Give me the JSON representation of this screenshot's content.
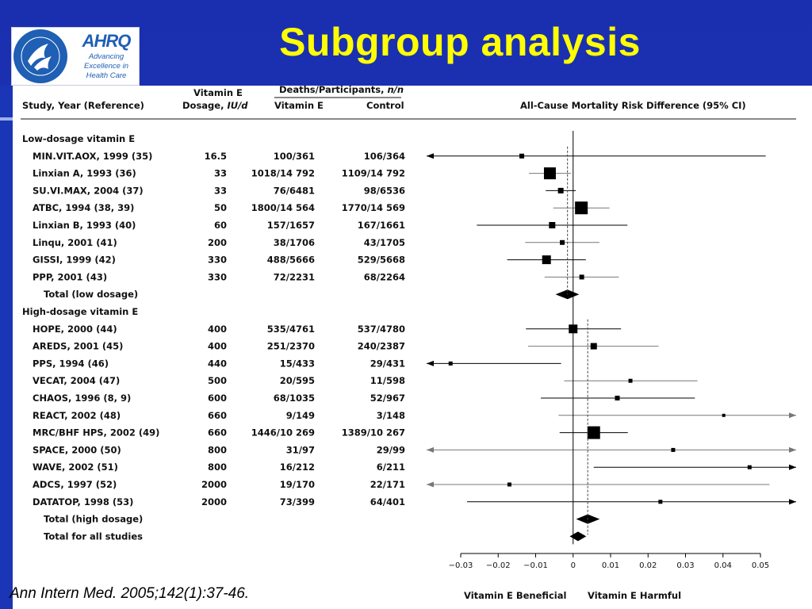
{
  "title": "Subgroup analysis",
  "citation": "Ann Intern Med. 2005;142(1):37-46.",
  "logo": {
    "brand": "AHRQ",
    "tagline": [
      "Advancing",
      "Excellence in",
      "Health Care"
    ],
    "seal_icon": "hhs-seal-icon"
  },
  "colors": {
    "slide_bg": "#1a35b5",
    "title": "#ffff00",
    "panel": "#ffffff",
    "marker": "#000000"
  },
  "table_headers": {
    "study": "Study, Year (Reference)",
    "dose_line1": "Vitamin E",
    "dose_line2": "Dosage, ",
    "dose_unit": "IU/d",
    "deaths_prefix": "Deaths/Participants, ",
    "deaths_unit": "n/n",
    "vitamin_e": "Vitamin E",
    "control": "Control",
    "plot": "All-Cause Mortality Risk Difference (95% CI)"
  },
  "x_axis_footer": {
    "left": "Vitamin E Beneficial",
    "right": "Vitamin E Harmful"
  },
  "chart_data": {
    "type": "forest",
    "title": "All-Cause Mortality Risk Difference (95% CI)",
    "xlim": [
      -0.03,
      0.05
    ],
    "xticks": [
      "−0.03",
      "−0.02",
      "−0.01",
      "0",
      "0.01",
      "0.02",
      "0.03",
      "0.04",
      "0.05"
    ],
    "xtick_values": [
      -0.03,
      -0.02,
      -0.01,
      0,
      0.01,
      0.02,
      0.03,
      0.04,
      0.05
    ],
    "reference_lines": {
      "null": 0,
      "low_dosage_pooled": -0.0015,
      "high_dosage_pooled": 0.0039
    },
    "rows": [
      {
        "kind": "group",
        "label": "Low-dosage vitamin E"
      },
      {
        "kind": "study",
        "label": "MIN.VIT.AOX, 1999 (35)",
        "dose": "16.5",
        "ve": "100/361",
        "ctrl": "106/364",
        "est": -0.0137,
        "lo": -0.04,
        "hi": 0.0514,
        "arrow_lo": true,
        "arrow_hi": false,
        "size": 6,
        "grey": false
      },
      {
        "kind": "study",
        "label": "Linxian A, 1993 (36)",
        "dose": "33",
        "ve": "1018/14 792",
        "ctrl": "1109/14 792",
        "est": -0.0062,
        "lo": -0.0118,
        "hi": -0.0006,
        "size": 15,
        "grey": true
      },
      {
        "kind": "study",
        "label": "SU.VI.MAX, 2004 (37)",
        "dose": "33",
        "ve": "76/6481",
        "ctrl": "98/6536",
        "est": -0.0033,
        "lo": -0.0073,
        "hi": 0.0007,
        "size": 7,
        "grey": false
      },
      {
        "kind": "study",
        "label": "ATBC, 1994 (38, 39)",
        "dose": "50",
        "ve": "1800/14 564",
        "ctrl": "1770/14 569",
        "est": 0.0022,
        "lo": -0.0053,
        "hi": 0.0097,
        "size": 16,
        "grey": true
      },
      {
        "kind": "study",
        "label": "Linxian B, 1993 (40)",
        "dose": "60",
        "ve": "157/1657",
        "ctrl": "167/1661",
        "est": -0.0056,
        "lo": -0.0257,
        "hi": 0.0145,
        "size": 8,
        "grey": false
      },
      {
        "kind": "study",
        "label": "Linqu, 2001 (41)",
        "dose": "200",
        "ve": "38/1706",
        "ctrl": "43/1705",
        "est": -0.0029,
        "lo": -0.0128,
        "hi": 0.007,
        "size": 6,
        "grey": true
      },
      {
        "kind": "study",
        "label": "GISSI, 1999 (42)",
        "dose": "330",
        "ve": "488/5666",
        "ctrl": "529/5668",
        "est": -0.0071,
        "lo": -0.0176,
        "hi": 0.0034,
        "size": 11,
        "grey": false
      },
      {
        "kind": "study",
        "label": "PPP, 2001 (43)",
        "dose": "330",
        "ve": "72/2231",
        "ctrl": "68/2264",
        "est": 0.0023,
        "lo": -0.0076,
        "hi": 0.0122,
        "size": 6,
        "grey": true
      },
      {
        "kind": "total",
        "label": "Total (low dosage)",
        "est": -0.0015,
        "lo": -0.0047,
        "hi": 0.0016
      },
      {
        "kind": "group",
        "label": "High-dosage vitamin E"
      },
      {
        "kind": "study",
        "label": "HOPE, 2000 (44)",
        "dose": "400",
        "ve": "535/4761",
        "ctrl": "537/4780",
        "est": 0.0,
        "lo": -0.0126,
        "hi": 0.0128,
        "size": 11,
        "grey": false
      },
      {
        "kind": "study",
        "label": "AREDS, 2001 (45)",
        "dose": "400",
        "ve": "251/2370",
        "ctrl": "240/2387",
        "est": 0.0055,
        "lo": -0.012,
        "hi": 0.0228,
        "size": 8,
        "grey": true
      },
      {
        "kind": "study",
        "label": "PPS, 1994 (46)",
        "dose": "440",
        "ve": "15/433",
        "ctrl": "29/431",
        "est": -0.0327,
        "lo": -0.04,
        "hi": -0.0032,
        "arrow_lo": true,
        "size": 5,
        "grey": false
      },
      {
        "kind": "study",
        "label": "VECAT, 2004 (47)",
        "dose": "500",
        "ve": "20/595",
        "ctrl": "11/598",
        "est": 0.0153,
        "lo": -0.0024,
        "hi": 0.0332,
        "size": 5,
        "grey": true
      },
      {
        "kind": "study",
        "label": "CHAOS, 1996 (8, 9)",
        "dose": "600",
        "ve": "68/1035",
        "ctrl": "52/967",
        "est": 0.0118,
        "lo": -0.0086,
        "hi": 0.0325,
        "size": 6,
        "grey": false
      },
      {
        "kind": "study",
        "label": "REACT, 2002 (48)",
        "dose": "660",
        "ve": "9/149",
        "ctrl": "3/148",
        "est": 0.0402,
        "lo": -0.0039,
        "hi": 0.06,
        "arrow_hi": true,
        "size": 4,
        "grey": true
      },
      {
        "kind": "study",
        "label": "MRC/BHF HPS, 2002 (49)",
        "dose": "660",
        "ve": "1446/10 269",
        "ctrl": "1389/10 267",
        "est": 0.0055,
        "lo": -0.0036,
        "hi": 0.0146,
        "size": 16,
        "grey": false
      },
      {
        "kind": "study",
        "label": "SPACE, 2000 (50)",
        "dose": "800",
        "ve": "31/97",
        "ctrl": "29/99",
        "est": 0.0267,
        "lo": -0.04,
        "hi": 0.06,
        "arrow_lo": true,
        "arrow_hi": true,
        "size": 5,
        "grey": true
      },
      {
        "kind": "study",
        "label": "WAVE, 2002 (51)",
        "dose": "800",
        "ve": "16/212",
        "ctrl": "6/211",
        "est": 0.0471,
        "lo": 0.0055,
        "hi": 0.06,
        "arrow_hi": true,
        "size": 5,
        "grey": false
      },
      {
        "kind": "study",
        "label": "ADCS, 1997 (52)",
        "dose": "2000",
        "ve": "19/170",
        "ctrl": "22/171",
        "est": -0.017,
        "lo": -0.04,
        "hi": 0.0524,
        "arrow_lo": true,
        "size": 5,
        "grey": true
      },
      {
        "kind": "study",
        "label": "DATATOP, 1998 (53)",
        "dose": "2000",
        "ve": "73/399",
        "ctrl": "64/401",
        "est": 0.0233,
        "lo": -0.0283,
        "hi": 0.06,
        "arrow_hi": true,
        "size": 5,
        "grey": false
      },
      {
        "kind": "total",
        "label": "Total (high dosage)",
        "est": 0.0039,
        "lo": 0.0008,
        "hi": 0.0071
      },
      {
        "kind": "total",
        "label": "Total for all studies",
        "est": 0.0013,
        "lo": -0.0009,
        "hi": 0.0035
      }
    ]
  }
}
